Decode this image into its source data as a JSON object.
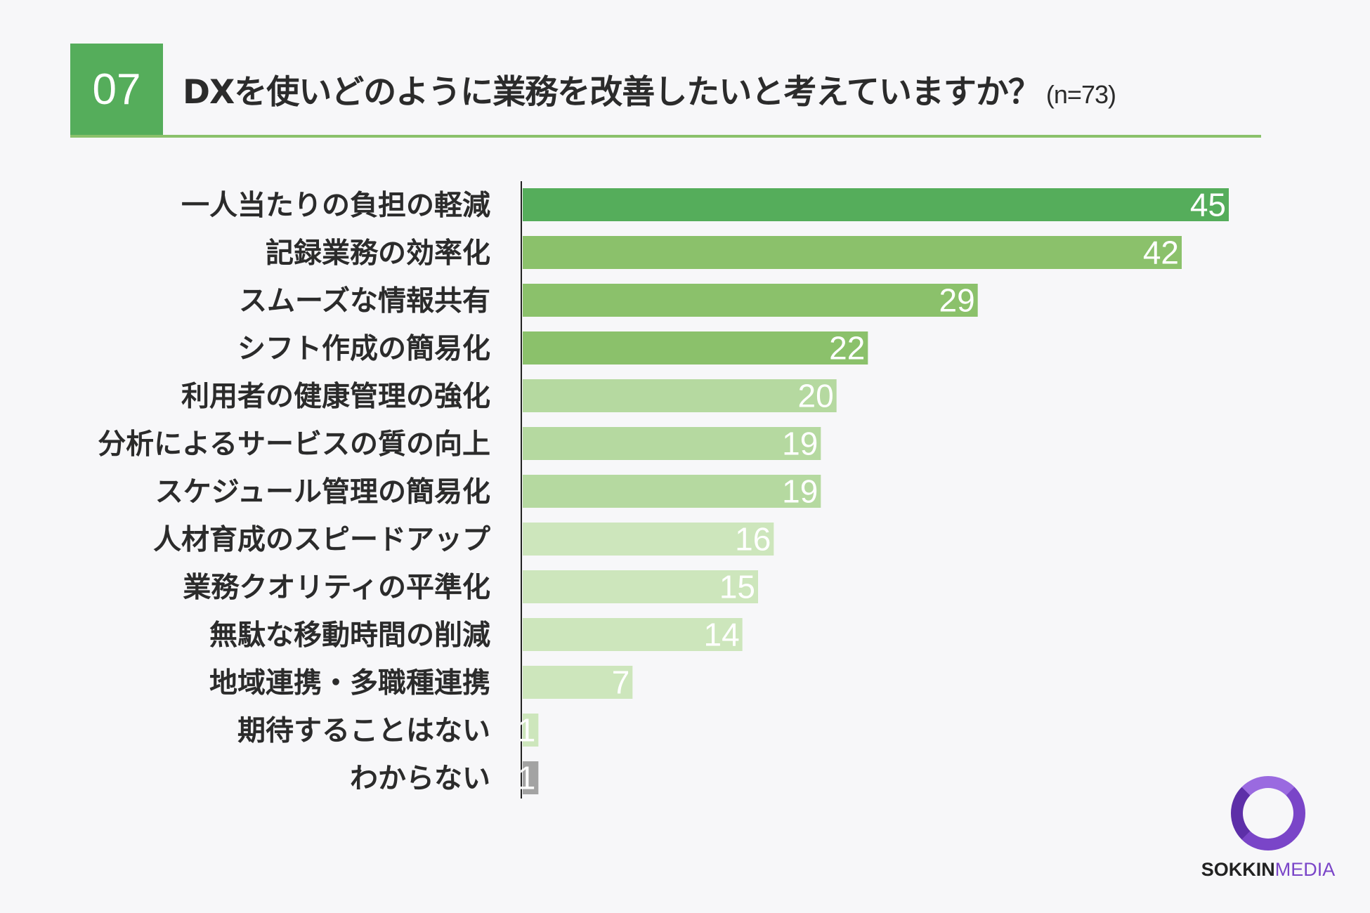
{
  "header": {
    "number": "07",
    "title": "DXを使いどのように業務を改善したいと考えていますか？",
    "sample_size": "(n=73)"
  },
  "chart_data": {
    "type": "bar",
    "orientation": "horizontal",
    "categories": [
      "一人当たりの負担の軽減",
      "記録業務の効率化",
      "スムーズな情報共有",
      "シフト作成の簡易化",
      "利用者の健康管理の強化",
      "分析によるサービスの質の向上",
      "スケジュール管理の簡易化",
      "人材育成のスピードアップ",
      "業務クオリティの平準化",
      "無駄な移動時間の削減",
      "地域連携・多職種連携",
      "期待することはない",
      "わからない"
    ],
    "values": [
      45,
      42,
      29,
      22,
      20,
      19,
      19,
      16,
      15,
      14,
      7,
      1,
      1
    ],
    "colors": [
      "#55ad5b",
      "#8bc16b",
      "#8bc16b",
      "#8bc16b",
      "#b5d9a0",
      "#b5d9a0",
      "#b5d9a0",
      "#cde6bc",
      "#cde6bc",
      "#cde6bc",
      "#cde6bc",
      "#cde6bc",
      "#a3a3a3"
    ],
    "xlim": [
      0,
      45
    ],
    "grid": false,
    "legend": "none"
  },
  "logo": {
    "text_bold": "SOKKIN",
    "text_light": "MEDIA"
  }
}
